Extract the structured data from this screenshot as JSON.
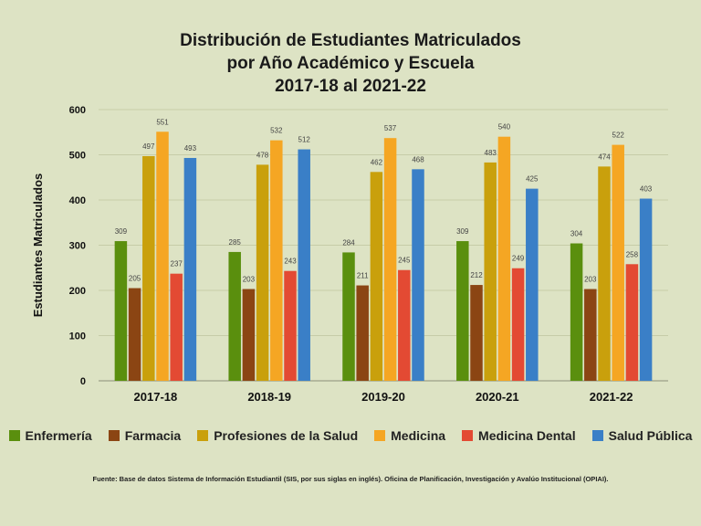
{
  "title_lines": [
    "Distribución de Estudiantes Matriculados",
    "por Año Académico y Escuela",
    "2017-18 al 2021-22"
  ],
  "footnote": "Fuente: Base de datos  Sistema de Información Estudiantil (SIS, por sus siglas en inglés). Oficina de Planificación, Investigación y Avalúo Institucional (OPIAI).",
  "chart_data": {
    "type": "bar",
    "title": "Distribución de Estudiantes Matriculados por Año Académico y Escuela 2017-18 al 2021-22",
    "xlabel": "",
    "ylabel": "Estudiantes Matriculados",
    "ylim": [
      0,
      600
    ],
    "yticks": [
      0,
      100,
      200,
      300,
      400,
      500,
      600
    ],
    "grid": true,
    "legend_position": "bottom",
    "categories": [
      "2017-18",
      "2018-19",
      "2019-20",
      "2020-21",
      "2021-22"
    ],
    "series": [
      {
        "name": "Enfermería",
        "color": "#5a8f0e",
        "values": [
          309,
          285,
          284,
          309,
          304
        ]
      },
      {
        "name": "Farmacia",
        "color": "#8b4513",
        "values": [
          205,
          203,
          211,
          212,
          203
        ]
      },
      {
        "name": "Profesiones de la Salud",
        "color": "#c9a00c",
        "values": [
          497,
          478,
          462,
          483,
          474
        ]
      },
      {
        "name": "Medicina",
        "color": "#f5a623",
        "values": [
          551,
          532,
          537,
          540,
          522
        ]
      },
      {
        "name": "Medicina Dental",
        "color": "#e34a33",
        "values": [
          237,
          243,
          245,
          249,
          258
        ]
      },
      {
        "name": "Salud Pública",
        "color": "#3a7fc7",
        "values": [
          493,
          512,
          468,
          425,
          403
        ]
      }
    ]
  }
}
